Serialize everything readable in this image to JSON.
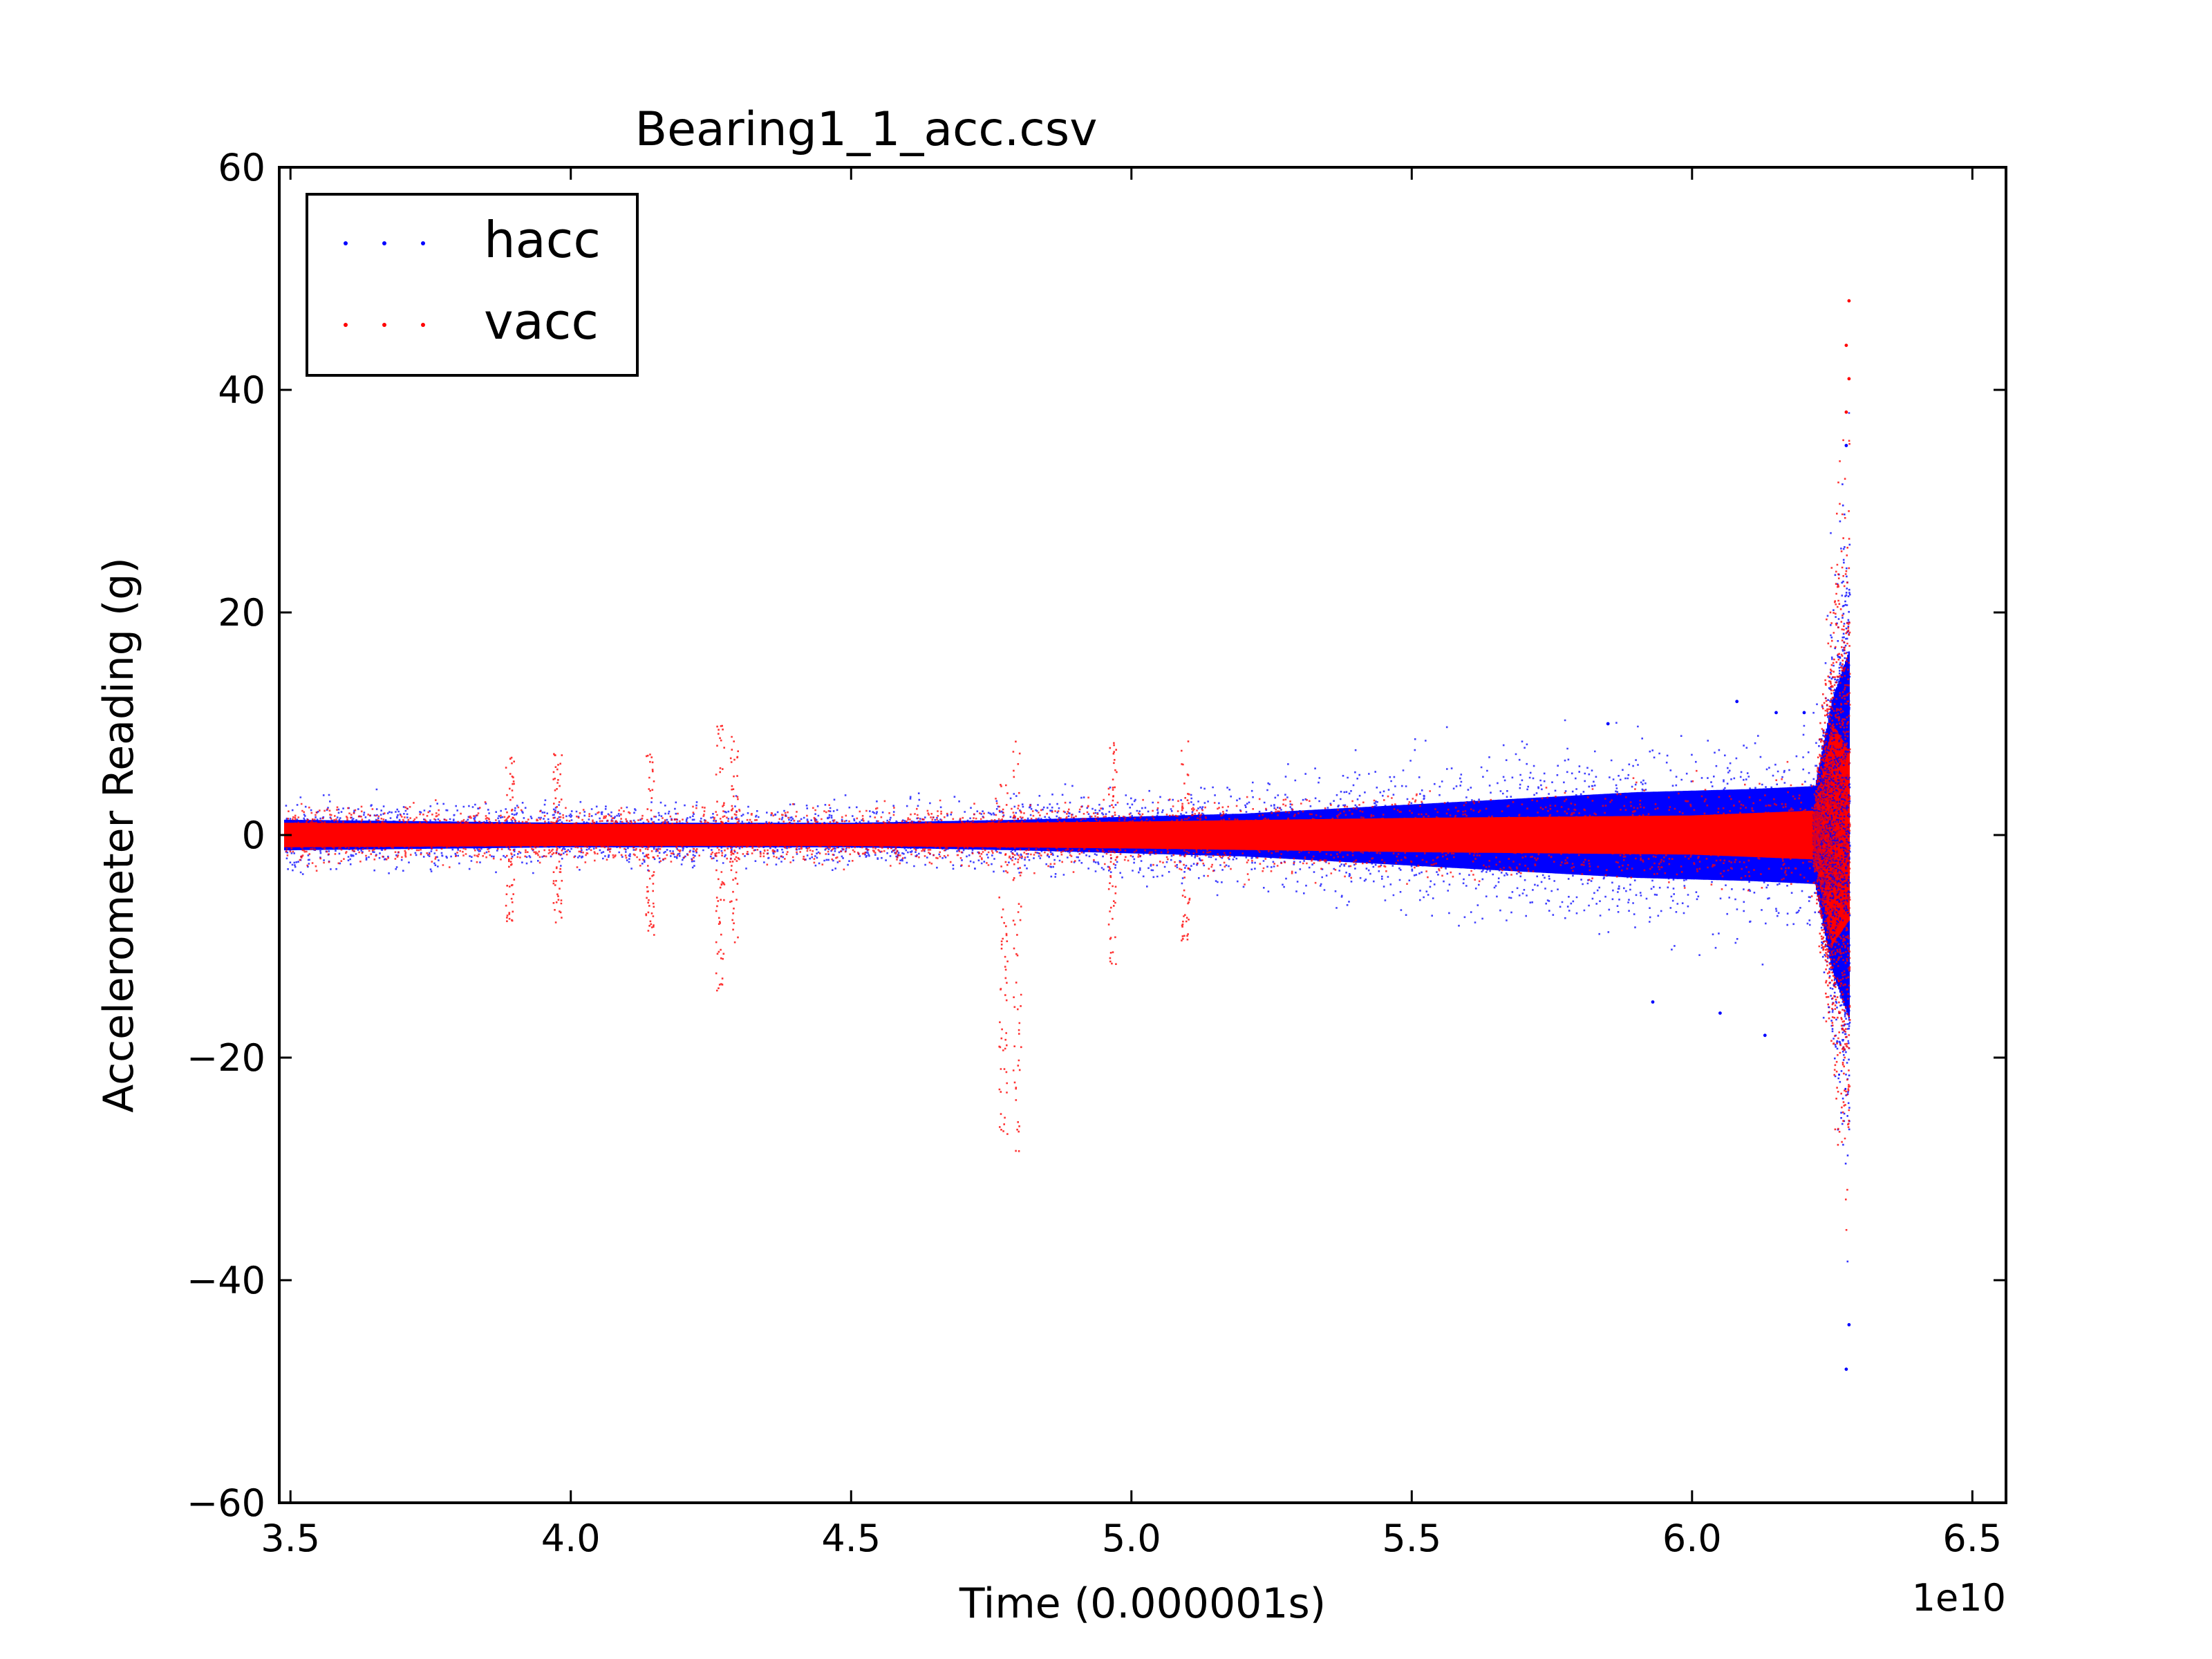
{
  "chart_data": {
    "type": "scatter",
    "title": "Bearing1_1_acc.csv",
    "xlabel": "Time (0.000001s)",
    "ylabel": "Accelerometer Reading (g)",
    "x_offset_label": "1e10",
    "xlim": [
      34800000000,
      65600000000
    ],
    "ylim": [
      -60,
      60
    ],
    "xticks": [
      35000000000,
      40000000000,
      45000000000,
      50000000000,
      55000000000,
      60000000000,
      65000000000
    ],
    "xtick_labels": [
      "3.5",
      "4.0",
      "4.5",
      "5.0",
      "5.5",
      "6.0",
      "6.5"
    ],
    "yticks": [
      -60,
      -40,
      -20,
      0,
      20,
      40,
      60
    ],
    "ytick_labels": [
      "−60",
      "−40",
      "−20",
      "0",
      "20",
      "40",
      "60"
    ],
    "grid": false,
    "legend_position": "top-left",
    "series": [
      {
        "name": "hacc",
        "color": "#0000ff",
        "envelope": [
          {
            "x": 34900000000,
            "amp": 2.5
          },
          {
            "x": 40000000000,
            "amp": 2.0
          },
          {
            "x": 45000000000,
            "amp": 2.0
          },
          {
            "x": 48000000000,
            "amp": 2.5
          },
          {
            "x": 50000000000,
            "amp": 3.0
          },
          {
            "x": 52000000000,
            "amp": 3.5
          },
          {
            "x": 55000000000,
            "amp": 5.0
          },
          {
            "x": 57000000000,
            "amp": 6.0
          },
          {
            "x": 59000000000,
            "amp": 7.0
          },
          {
            "x": 61000000000,
            "amp": 7.5
          },
          {
            "x": 62200000000,
            "amp": 8.0
          },
          {
            "x": 62500000000,
            "amp": 22.0
          },
          {
            "x": 62800000000,
            "amp": 30.0
          }
        ],
        "outliers": [
          {
            "x": 62750000000,
            "y": 35
          },
          {
            "x": 62750000000,
            "y": -48
          },
          {
            "x": 62800000000,
            "y": -44
          },
          {
            "x": 61300000000,
            "y": -18
          },
          {
            "x": 61500000000,
            "y": 11
          },
          {
            "x": 60800000000,
            "y": 12
          },
          {
            "x": 59300000000,
            "y": -15
          },
          {
            "x": 58500000000,
            "y": 10
          },
          {
            "x": 62000000000,
            "y": 11
          },
          {
            "x": 60500000000,
            "y": -16
          }
        ]
      },
      {
        "name": "vacc",
        "color": "#ff0000",
        "envelope": [
          {
            "x": 34900000000,
            "amp": 2.0
          },
          {
            "x": 40000000000,
            "amp": 1.8
          },
          {
            "x": 45000000000,
            "amp": 1.8
          },
          {
            "x": 50000000000,
            "amp": 2.2
          },
          {
            "x": 55000000000,
            "amp": 2.8
          },
          {
            "x": 60000000000,
            "amp": 3.2
          },
          {
            "x": 62200000000,
            "amp": 4.0
          },
          {
            "x": 62500000000,
            "amp": 18.0
          },
          {
            "x": 62800000000,
            "amp": 14.0
          }
        ],
        "spikes": [
          {
            "x": 38900000000,
            "min": -8.0,
            "max": 7.0
          },
          {
            "x": 39750000000,
            "min": -8.0,
            "max": 7.5
          },
          {
            "x": 41400000000,
            "min": -9.0,
            "max": 7.5
          },
          {
            "x": 42650000000,
            "min": -14.0,
            "max": 10.0
          },
          {
            "x": 42900000000,
            "min": -10.0,
            "max": 9.0
          },
          {
            "x": 47700000000,
            "min": -27.0,
            "max": 5.5
          },
          {
            "x": 47950000000,
            "min": -29.0,
            "max": 8.5
          },
          {
            "x": 49650000000,
            "min": -12.0,
            "max": 8.5
          },
          {
            "x": 50950000000,
            "min": -9.5,
            "max": 8.5
          }
        ],
        "outliers": [
          {
            "x": 62800000000,
            "y": 48
          },
          {
            "x": 62750000000,
            "y": 44
          },
          {
            "x": 62800000000,
            "y": 41
          },
          {
            "x": 62750000000,
            "y": 38
          }
        ]
      }
    ]
  }
}
